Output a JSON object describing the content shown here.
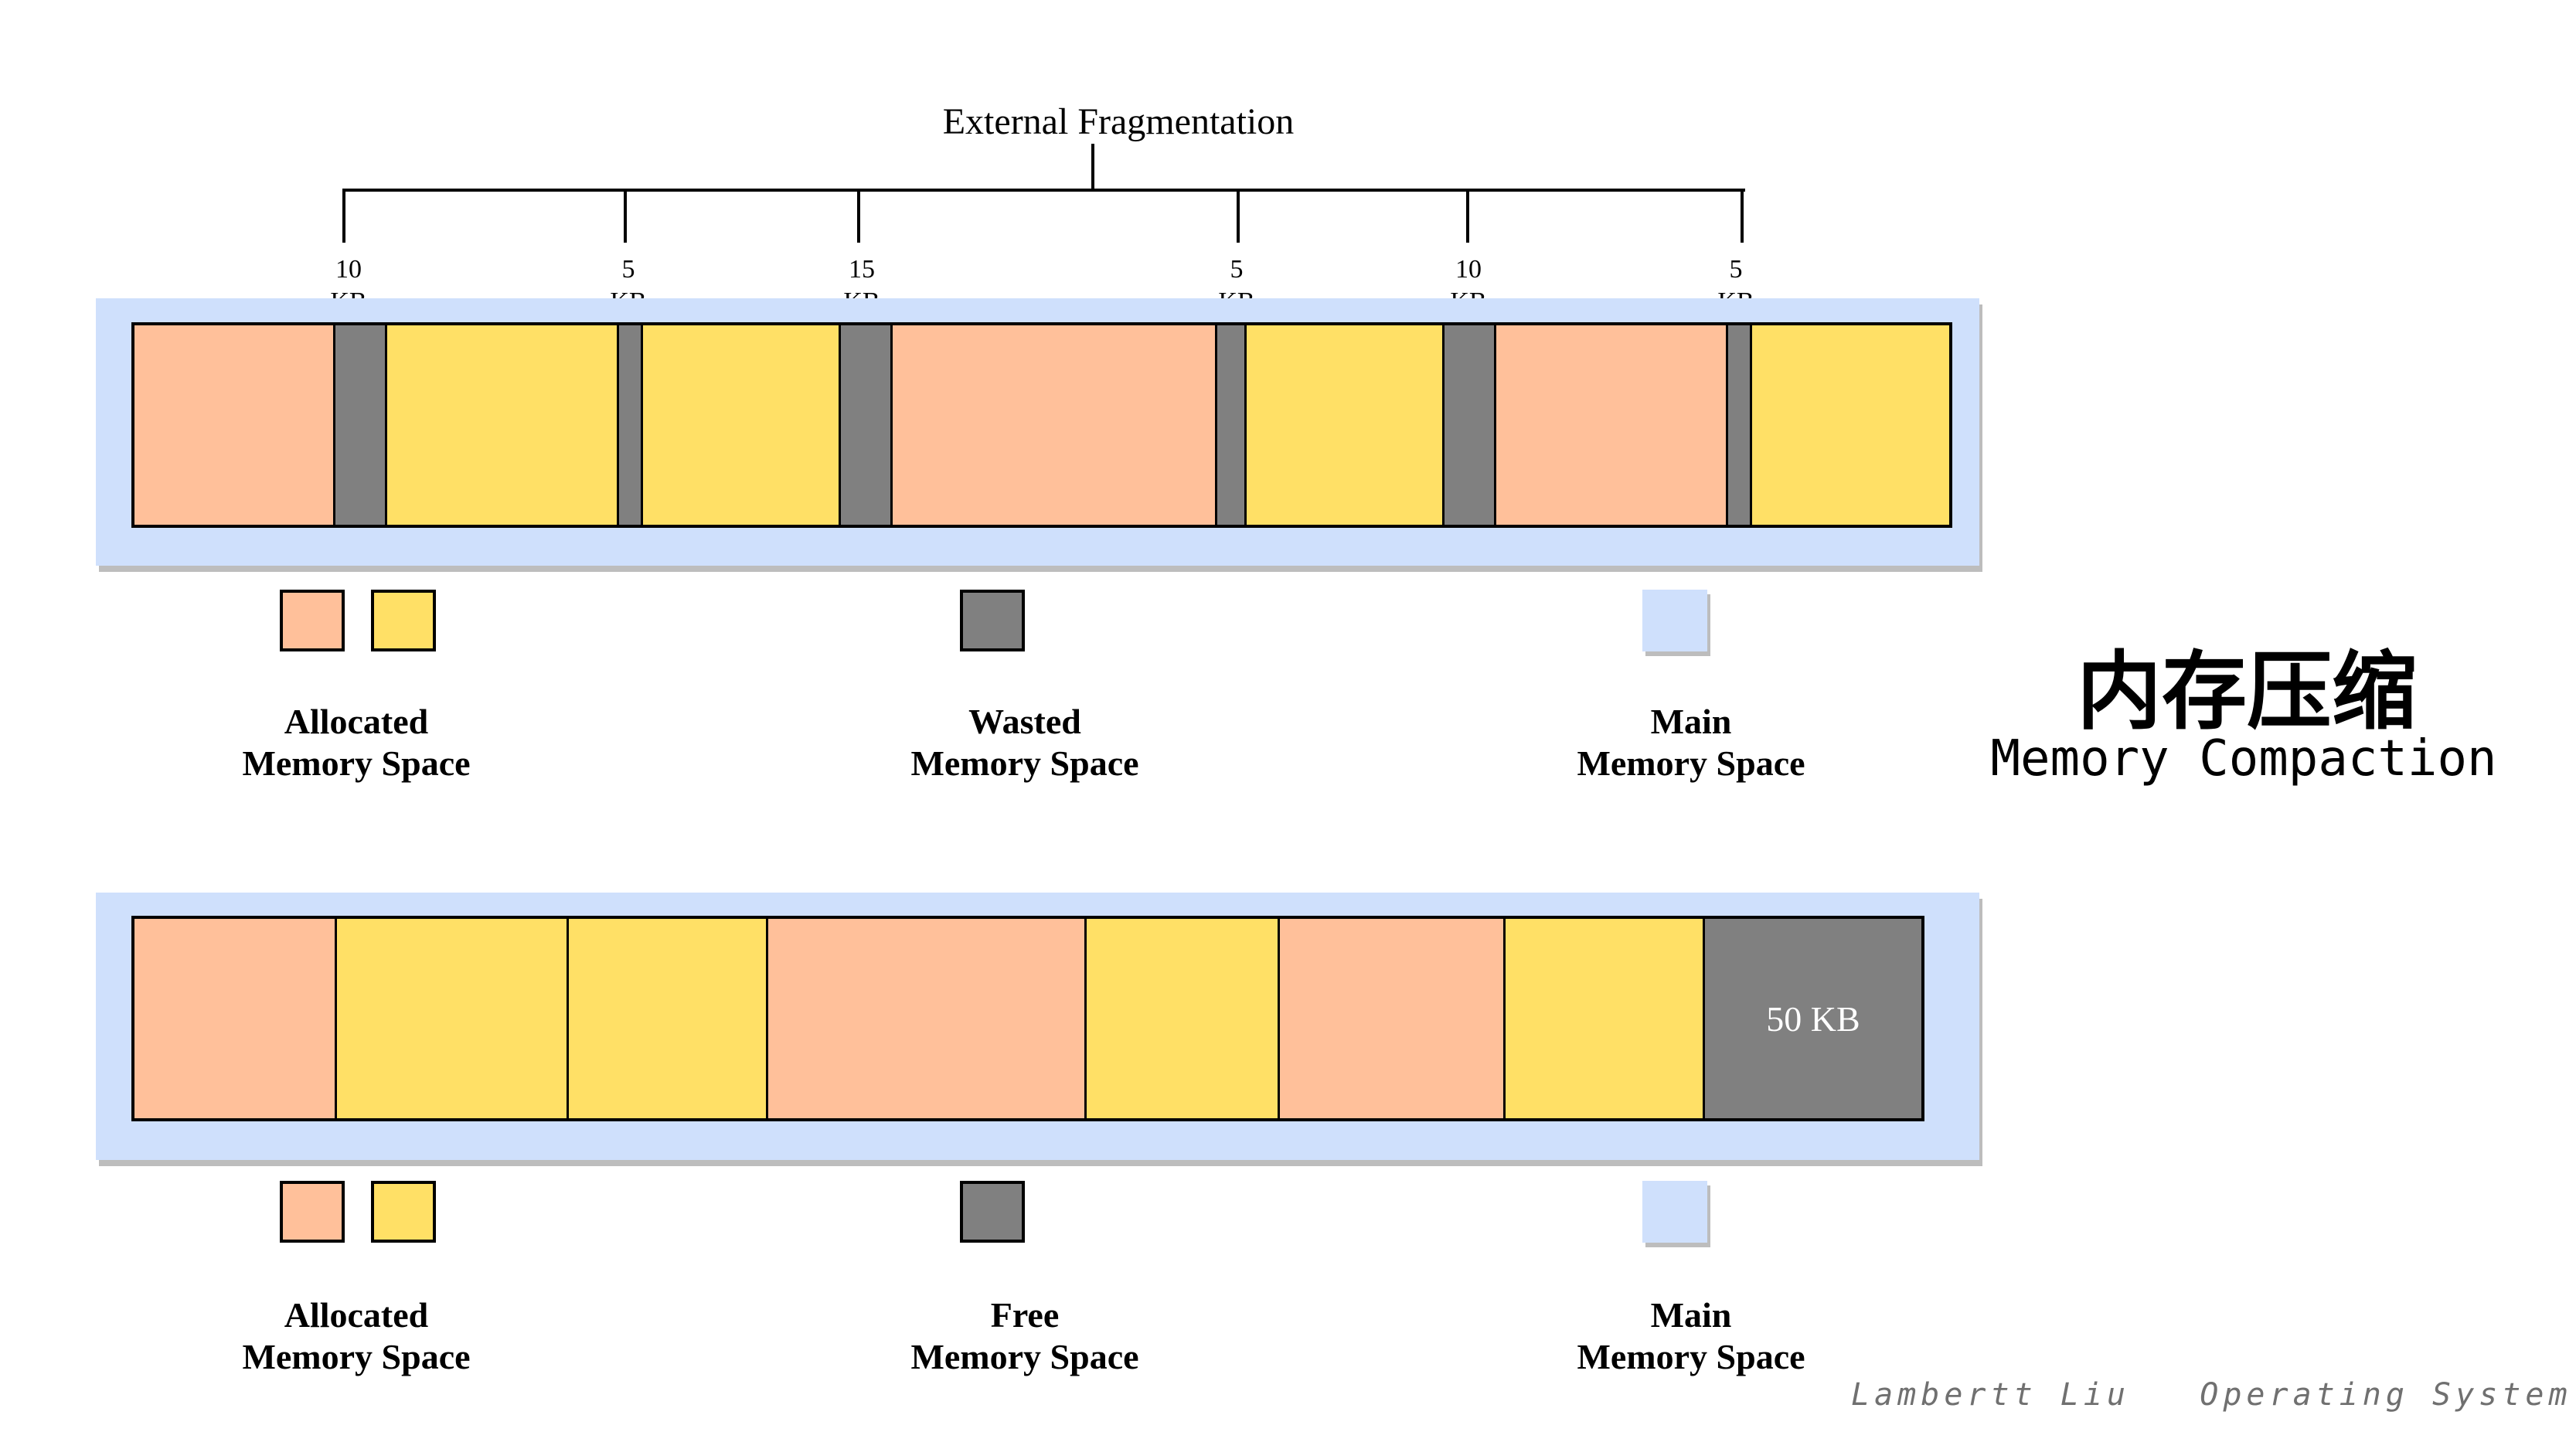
{
  "bracket": {
    "title": "External Fragmentation",
    "fragments": [
      {
        "size": "10",
        "unit": "KB"
      },
      {
        "size": "5",
        "unit": "KB"
      },
      {
        "size": "15",
        "unit": "KB"
      },
      {
        "size": "5",
        "unit": "KB"
      },
      {
        "size": "10",
        "unit": "KB"
      },
      {
        "size": "5",
        "unit": "KB"
      }
    ]
  },
  "before_bar": {
    "segments": [
      "allocated-a",
      "wasted",
      "allocated-b",
      "wasted",
      "allocated-b",
      "wasted",
      "allocated-a",
      "wasted",
      "allocated-b",
      "wasted",
      "allocated-a",
      "wasted",
      "allocated-b"
    ]
  },
  "after_bar": {
    "segments": [
      "allocated-a",
      "allocated-b",
      "allocated-b",
      "allocated-a",
      "allocated-b",
      "allocated-a",
      "allocated-b",
      "free"
    ],
    "free_label": "50 KB"
  },
  "legend_top": {
    "allocated": {
      "line1": "Allocated",
      "line2": "Memory Space"
    },
    "wasted": {
      "line1": "Wasted",
      "line2": "Memory Space"
    },
    "main": {
      "line1": "Main",
      "line2": "Memory Space"
    }
  },
  "legend_bottom": {
    "allocated": {
      "line1": "Allocated",
      "line2": "Memory Space"
    },
    "free": {
      "line1": "Free",
      "line2": "Memory Space"
    },
    "main": {
      "line1": "Main",
      "line2": "Memory Space"
    }
  },
  "title": {
    "cn": "内存压缩",
    "en": "Memory Compaction"
  },
  "footer": {
    "author": "Lambertt Liu",
    "course": "Operating System"
  },
  "colors": {
    "allocated_orange": "#ffc09a",
    "allocated_yellow": "#ffe066",
    "wasted_gray": "#808080",
    "main_blue": "#cfe0fc"
  }
}
